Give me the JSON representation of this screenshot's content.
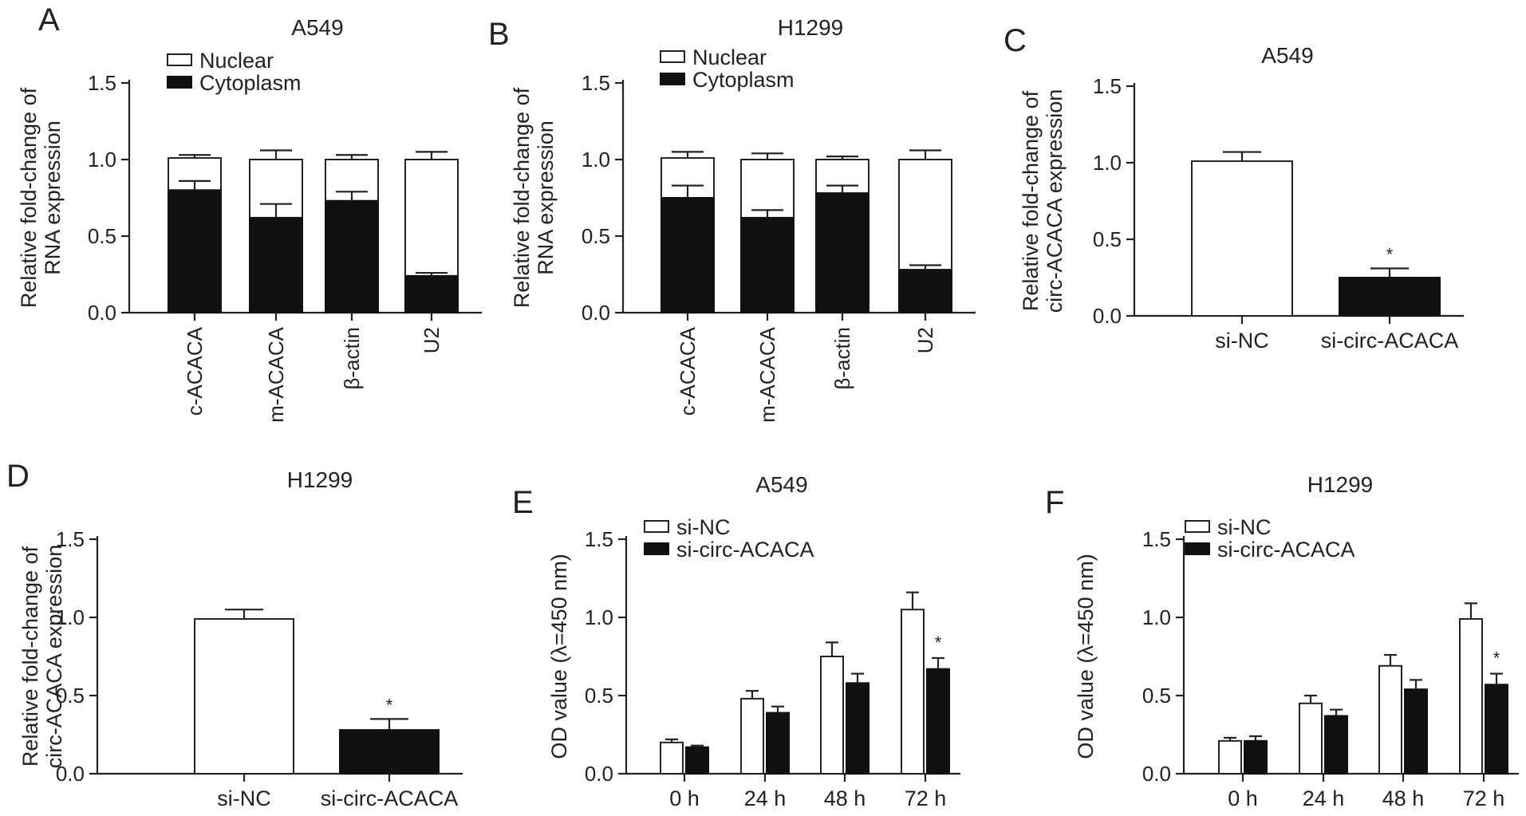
{
  "colors": {
    "black_bar": "#111111",
    "white_bar": "#ffffff",
    "axis": "#222222"
  },
  "chart_data": [
    {
      "panel": "A",
      "type": "bar",
      "stacked": true,
      "title": "A549",
      "ylabel": "Relative fold-change of RNA expression",
      "ylim": [
        0,
        1.5
      ],
      "yticks": [
        "0.0",
        "0.5",
        "1.0",
        "1.5"
      ],
      "categories": [
        "c-ACACA",
        "m-ACACA",
        "β-actin",
        "U2"
      ],
      "legend_position": "top-left",
      "series": [
        {
          "name": "Cytoplasm",
          "color": "#111111",
          "values": [
            0.8,
            0.62,
            0.73,
            0.24
          ],
          "errors": [
            0.06,
            0.09,
            0.06,
            0.02
          ]
        },
        {
          "name": "Nuclear",
          "color": "#ffffff",
          "values": [
            0.21,
            0.38,
            0.27,
            0.76
          ],
          "errors": [
            0.02,
            0.06,
            0.03,
            0.05
          ]
        }
      ]
    },
    {
      "panel": "B",
      "type": "bar",
      "stacked": true,
      "title": "H1299",
      "ylabel": "Relative fold-change of RNA expression",
      "ylim": [
        0,
        1.5
      ],
      "yticks": [
        "0.0",
        "0.5",
        "1.0",
        "1.5"
      ],
      "categories": [
        "c-ACACA",
        "m-ACACA",
        "β-actin",
        "U2"
      ],
      "legend_position": "top-left",
      "series": [
        {
          "name": "Cytoplasm",
          "color": "#111111",
          "values": [
            0.75,
            0.62,
            0.78,
            0.28
          ],
          "errors": [
            0.08,
            0.05,
            0.05,
            0.03
          ]
        },
        {
          "name": "Nuclear",
          "color": "#ffffff",
          "values": [
            0.26,
            0.38,
            0.22,
            0.72
          ],
          "errors": [
            0.04,
            0.04,
            0.02,
            0.06
          ]
        }
      ]
    },
    {
      "panel": "C",
      "type": "bar",
      "title": "A549",
      "ylabel": "Relative fold-change of circ-ACACA expression",
      "ylim": [
        0,
        1.5
      ],
      "yticks": [
        "0.0",
        "0.5",
        "1.0",
        "1.5"
      ],
      "categories": [
        "si-NC",
        "si-circ-ACACA"
      ],
      "values": [
        1.01,
        0.25
      ],
      "errors": [
        0.06,
        0.06
      ],
      "fills": [
        "#ffffff",
        "#111111"
      ],
      "significance": [
        "",
        "*"
      ]
    },
    {
      "panel": "D",
      "type": "bar",
      "title": "H1299",
      "ylabel": "Relative fold-change of circ-ACACA expression",
      "ylim": [
        0,
        1.5
      ],
      "yticks": [
        "0.0",
        "0.5",
        "1.0",
        "1.5"
      ],
      "categories": [
        "si-NC",
        "si-circ-ACACA"
      ],
      "values": [
        0.99,
        0.28
      ],
      "errors": [
        0.06,
        0.07
      ],
      "fills": [
        "#ffffff",
        "#111111"
      ],
      "significance": [
        "",
        "*"
      ]
    },
    {
      "panel": "E",
      "type": "bar",
      "grouped": true,
      "title": "A549",
      "ylabel": "OD value (λ=450 nm)",
      "ylim": [
        0,
        1.5
      ],
      "yticks": [
        "0.0",
        "0.5",
        "1.0",
        "1.5"
      ],
      "categories": [
        "0 h",
        "24 h",
        "48 h",
        "72 h"
      ],
      "legend_position": "top-left",
      "series": [
        {
          "name": "si-NC",
          "color": "#ffffff",
          "values": [
            0.2,
            0.48,
            0.75,
            1.05
          ],
          "errors": [
            0.02,
            0.05,
            0.09,
            0.11
          ]
        },
        {
          "name": "si-circ-ACACA",
          "color": "#111111",
          "values": [
            0.17,
            0.39,
            0.58,
            0.67
          ],
          "errors": [
            0.01,
            0.04,
            0.06,
            0.07
          ]
        }
      ],
      "significance": [
        "",
        "",
        "",
        "*"
      ]
    },
    {
      "panel": "F",
      "type": "bar",
      "grouped": true,
      "title": "H1299",
      "ylabel": "OD value (λ=450 nm)",
      "ylim": [
        0,
        1.5
      ],
      "yticks": [
        "0.0",
        "0.5",
        "1.0",
        "1.5"
      ],
      "categories": [
        "0 h",
        "24 h",
        "48 h",
        "72 h"
      ],
      "legend_position": "top-left",
      "series": [
        {
          "name": "si-NC",
          "color": "#ffffff",
          "values": [
            0.21,
            0.45,
            0.69,
            0.99
          ],
          "errors": [
            0.02,
            0.05,
            0.07,
            0.1
          ]
        },
        {
          "name": "si-circ-ACACA",
          "color": "#111111",
          "values": [
            0.21,
            0.37,
            0.54,
            0.57
          ],
          "errors": [
            0.03,
            0.04,
            0.06,
            0.07
          ]
        }
      ],
      "significance": [
        "",
        "",
        "",
        "*"
      ]
    }
  ]
}
